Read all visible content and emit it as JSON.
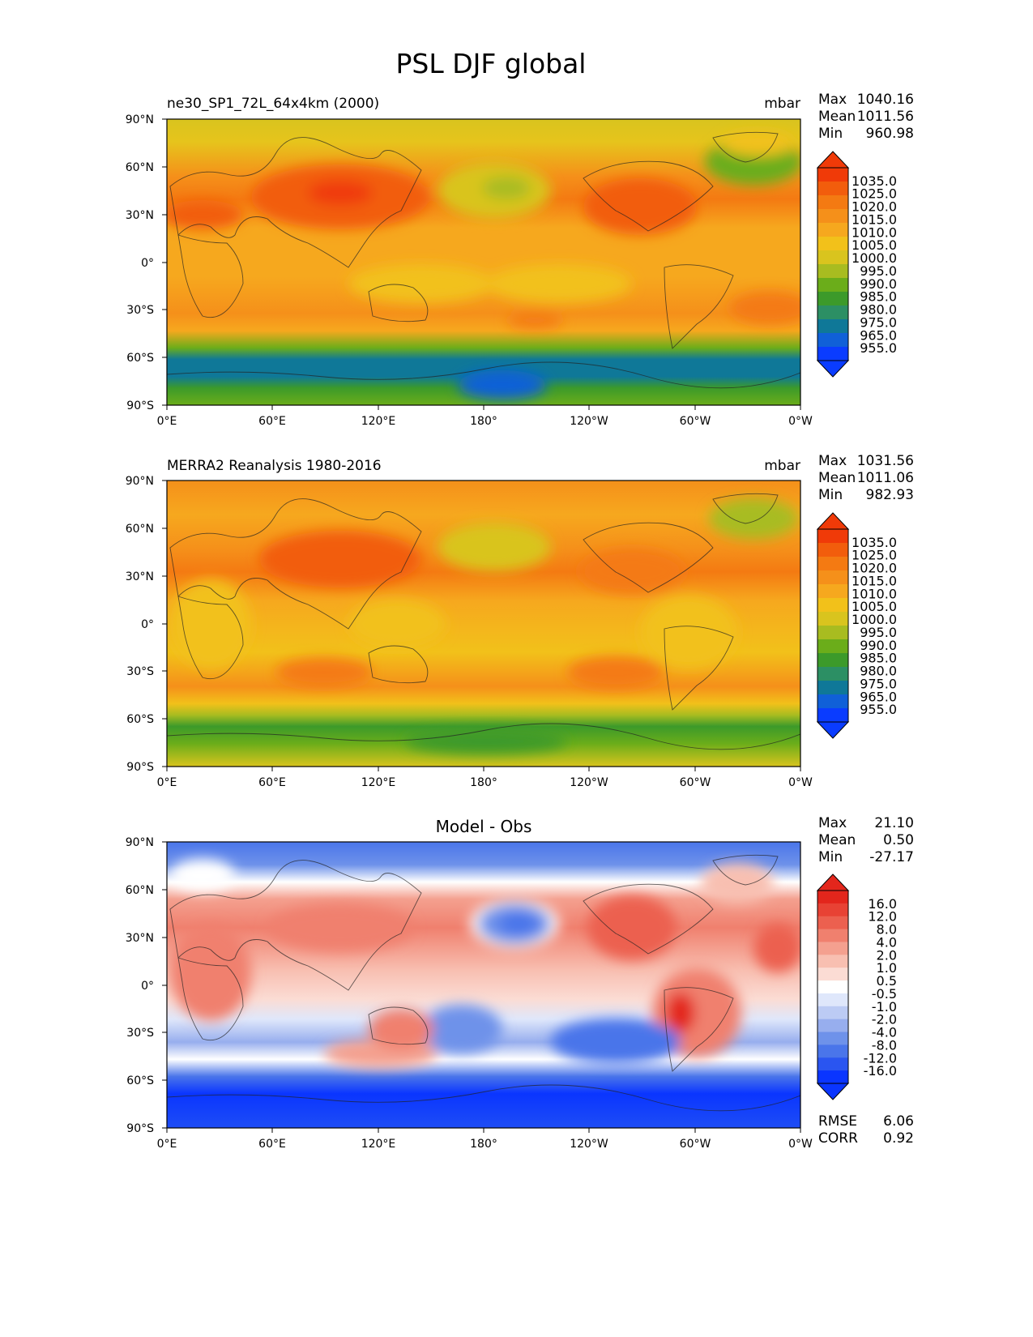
{
  "figure": {
    "title": "PSL DJF global"
  },
  "axes": {
    "lat_labels": [
      "90°N",
      "60°N",
      "30°N",
      "0°",
      "30°S",
      "60°S",
      "90°S"
    ],
    "lon_labels": [
      "0°E",
      "60°E",
      "120°E",
      "180°",
      "120°W",
      "60°W",
      "0°W"
    ]
  },
  "colors": {
    "psl_levels": [
      "#0a3cff",
      "#1060d8",
      "#0f7898",
      "#2c8f64",
      "#3c9a2a",
      "#6bad1a",
      "#a8bc20",
      "#d9c41e",
      "#f2c11a",
      "#f6a81e",
      "#f5901a",
      "#f47a12",
      "#f25d0c",
      "#f03a08"
    ],
    "diff_levels": [
      "#0a35ff",
      "#2a55f0",
      "#4a75ea",
      "#6e92ea",
      "#97aeee",
      "#bccbf4",
      "#dfe7fb",
      "#ffffff",
      "#fbdcd4",
      "#f8bfb1",
      "#f4a08f",
      "#f0806e",
      "#ec604f",
      "#e84234",
      "#e3261c"
    ]
  },
  "panels": [
    {
      "name": "model",
      "title_left": "ne30_SP1_72L_64x4km (2000)",
      "title_center": "",
      "title_right": "mbar",
      "stats": [
        {
          "label": "Max",
          "value": "1040.16"
        },
        {
          "label": "Mean",
          "value": "1011.56"
        },
        {
          "label": "Min",
          "value": "960.98"
        }
      ],
      "colorbar_labels": [
        "1035.0",
        "1025.0",
        "1020.0",
        "1015.0",
        "1010.0",
        "1005.0",
        "1000.0",
        "995.0",
        "990.0",
        "985.0",
        "980.0",
        "975.0",
        "965.0",
        "955.0"
      ]
    },
    {
      "name": "obs",
      "title_left": "MERRA2 Reanalysis 1980-2016",
      "title_center": "",
      "title_right": "mbar",
      "stats": [
        {
          "label": "Max",
          "value": "1031.56"
        },
        {
          "label": "Mean",
          "value": "1011.06"
        },
        {
          "label": "Min",
          "value": "982.93"
        }
      ],
      "colorbar_labels": [
        "1035.0",
        "1025.0",
        "1020.0",
        "1015.0",
        "1010.0",
        "1005.0",
        "1000.0",
        "995.0",
        "990.0",
        "985.0",
        "980.0",
        "975.0",
        "965.0",
        "955.0"
      ]
    },
    {
      "name": "diff",
      "title_left": "",
      "title_center": "Model - Obs",
      "title_right": "",
      "stats": [
        {
          "label": "Max",
          "value": "21.10"
        },
        {
          "label": "Mean",
          "value": "0.50"
        },
        {
          "label": "Min",
          "value": "-27.17"
        }
      ],
      "colorbar_labels": [
        "16.0",
        "12.0",
        "8.0",
        "4.0",
        "2.0",
        "1.0",
        "0.5",
        "-0.5",
        "-1.0",
        "-2.0",
        "-4.0",
        "-8.0",
        "-12.0",
        "-16.0"
      ],
      "footer_stats": [
        {
          "label": "RMSE",
          "value": "6.06"
        },
        {
          "label": "CORR",
          "value": "0.92"
        }
      ]
    }
  ]
}
